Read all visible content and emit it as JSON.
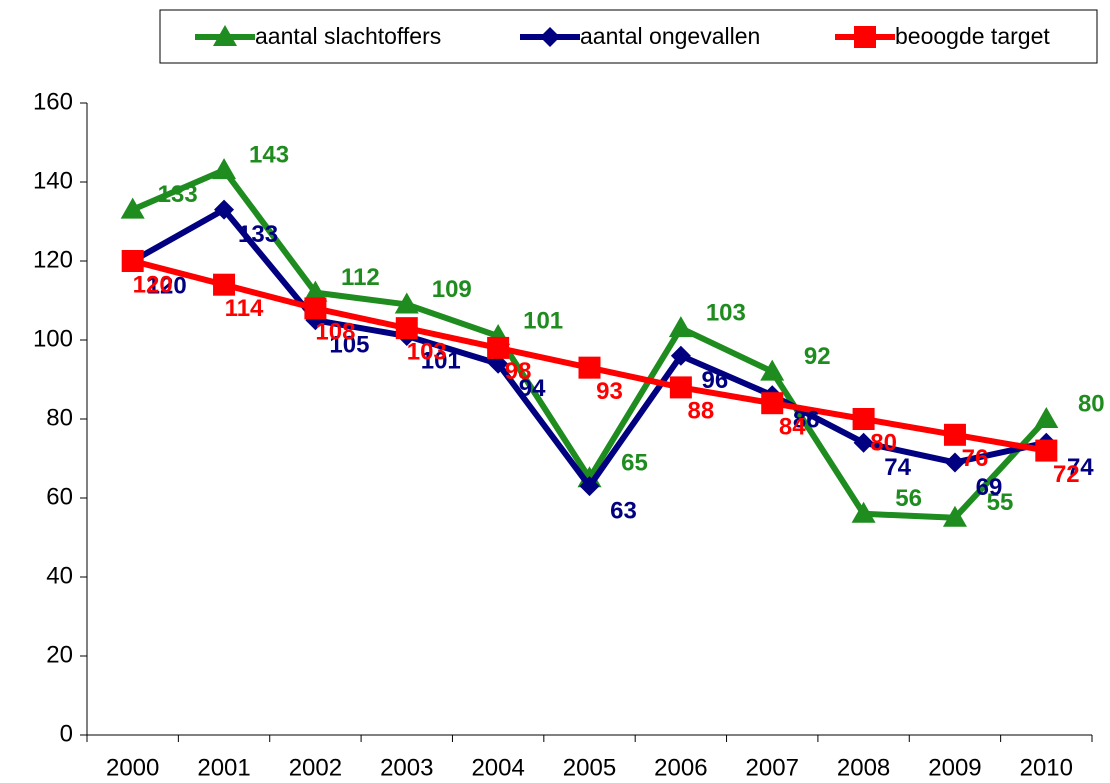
{
  "chart_data": {
    "type": "line",
    "categories": [
      "2000",
      "2001",
      "2002",
      "2003",
      "2004",
      "2005",
      "2006",
      "2007",
      "2008",
      "2009",
      "2010"
    ],
    "series": [
      {
        "name": "aantal slachtoffers",
        "color": "#1e8c1e",
        "marker": "triangle",
        "values": [
          133,
          143,
          112,
          109,
          101,
          65,
          103,
          92,
          56,
          55,
          80
        ]
      },
      {
        "name": "aantal ongevallen",
        "color": "#000080",
        "marker": "diamond",
        "values": [
          120,
          133,
          105,
          101,
          94,
          63,
          96,
          86,
          74,
          69,
          74
        ]
      },
      {
        "name": "beoogde target",
        "color": "#ff0000",
        "marker": "square",
        "values": [
          120,
          114,
          108,
          103,
          98,
          93,
          88,
          84,
          80,
          76,
          72
        ]
      }
    ],
    "ylim": [
      0,
      160
    ],
    "yticks": [
      0,
      20,
      40,
      60,
      80,
      100,
      120,
      140,
      160
    ],
    "grid": false,
    "legend": "top"
  }
}
